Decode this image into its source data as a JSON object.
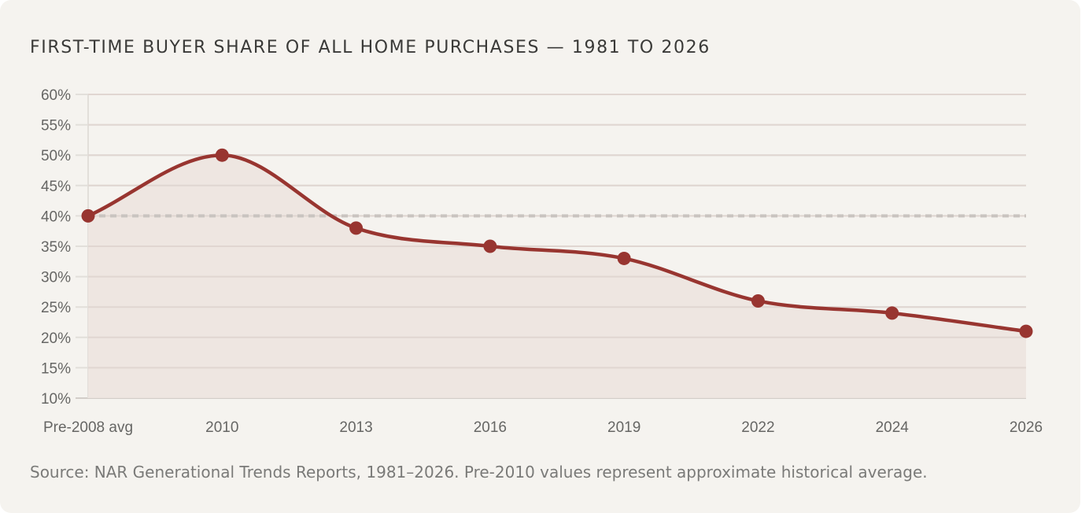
{
  "chart_data": {
    "type": "line",
    "title": "FIRST-TIME BUYER SHARE OF ALL HOME PURCHASES — 1981 TO 2026",
    "categories": [
      "Pre-2008 avg",
      "2010",
      "2013",
      "2016",
      "2019",
      "2022",
      "2024",
      "2026"
    ],
    "series": [
      {
        "values": [
          40,
          50,
          38,
          35,
          33,
          26,
          24,
          21
        ]
      }
    ],
    "ylim": [
      10,
      60
    ],
    "yticks": [
      60,
      55,
      50,
      45,
      40,
      35,
      30,
      25,
      20,
      15,
      10
    ],
    "ytick_format": "%",
    "reference_line": {
      "value": 40,
      "style": "dashed"
    },
    "grid": true,
    "area_fill": true,
    "colors": {
      "line": "#983530",
      "fill": "#ede4df",
      "grid": "#e2dfda",
      "reference": "#c9c4c0"
    },
    "source": "Source: NAR Generational Trends Reports, 1981–2026. Pre-2010 values represent approximate historical average."
  }
}
